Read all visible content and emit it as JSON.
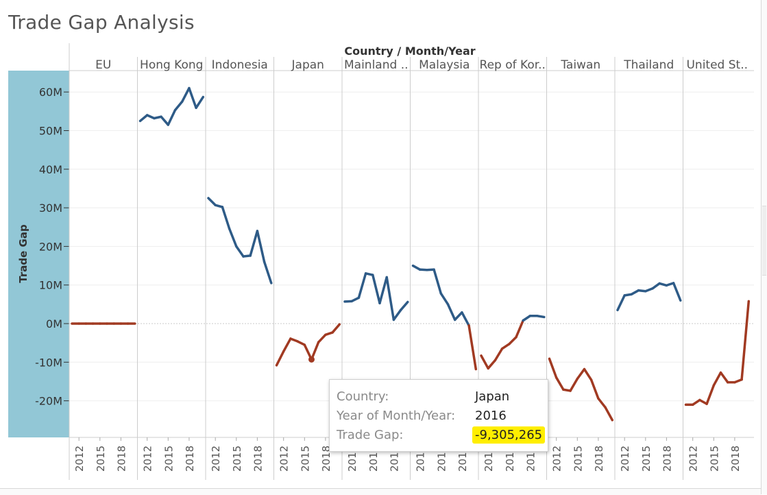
{
  "page": {
    "title": "Trade Gap Analysis"
  },
  "colors": {
    "positive": "#2e5b87",
    "negative": "#a13a22",
    "axis_band": "#92c7d6",
    "highlight": "#ffee00"
  },
  "tooltip": {
    "country_label": "Country:",
    "country_value": "Japan",
    "year_label": "Year of Month/Year:",
    "year_value": "2016",
    "gap_label": "Trade Gap:",
    "gap_value": "-9,305,265"
  },
  "chart_data": {
    "type": "line",
    "title": "",
    "column_header": "Country / Month/Year",
    "ylabel": "Trade Gap",
    "ylim": [
      -29,
      64
    ],
    "yticks": [
      60,
      50,
      40,
      30,
      20,
      10,
      0,
      -10,
      -20
    ],
    "ytick_labels": [
      "60M",
      "50M",
      "40M",
      "30M",
      "20M",
      "10M",
      "0M",
      "-10M",
      "-20M"
    ],
    "x_ticks": [
      2012,
      2015,
      2018
    ],
    "x_range": [
      2011,
      2020
    ],
    "panels": [
      {
        "label": "EU",
        "years": [
          2011,
          2012,
          2013,
          2014,
          2015,
          2016,
          2017,
          2018,
          2019,
          2020
        ],
        "values": [
          0,
          0,
          0,
          0,
          0,
          0,
          0,
          0,
          0,
          0
        ]
      },
      {
        "label": "Hong Kong",
        "years": [
          2011,
          2012,
          2013,
          2014,
          2015,
          2016,
          2017,
          2018,
          2019,
          2020
        ],
        "values": [
          52.5,
          54.0,
          53.2,
          53.6,
          51.5,
          55.3,
          57.5,
          61.0,
          55.9,
          58.7
        ]
      },
      {
        "label": "Indonesia",
        "years": [
          2011,
          2012,
          2013,
          2014,
          2015,
          2016,
          2017,
          2018,
          2019,
          2020
        ],
        "values": [
          32.5,
          30.7,
          30.2,
          24.6,
          20.0,
          17.4,
          17.6,
          24.0,
          16.0,
          10.5
        ]
      },
      {
        "label": "Japan",
        "years": [
          2011,
          2012,
          2013,
          2014,
          2015,
          2016,
          2017,
          2018,
          2019,
          2020
        ],
        "values": [
          -10.8,
          -7.2,
          -3.9,
          -4.6,
          -5.5,
          -9.3,
          -4.8,
          -2.9,
          -2.3,
          -0.2
        ]
      },
      {
        "label": "Mainland ..",
        "years": [
          2011,
          2012,
          2013,
          2014,
          2015,
          2016,
          2017,
          2018,
          2019,
          2020
        ],
        "values": [
          5.7,
          5.8,
          6.7,
          13.0,
          12.6,
          5.3,
          12.0,
          1.0,
          3.5,
          5.6
        ]
      },
      {
        "label": "Malaysia",
        "years": [
          2011,
          2012,
          2013,
          2014,
          2015,
          2016,
          2017,
          2018,
          2019,
          2020
        ],
        "values": [
          15.0,
          14.0,
          13.9,
          14.0,
          7.8,
          5.0,
          1.0,
          2.9,
          -0.5,
          -11.8
        ]
      },
      {
        "label": "Rep of Kor..",
        "years": [
          2011,
          2012,
          2013,
          2014,
          2015,
          2016,
          2017,
          2018,
          2019,
          2020
        ],
        "values": [
          -8.3,
          -11.6,
          -9.5,
          -6.5,
          -5.3,
          -3.5,
          0.8,
          2.0,
          2.0,
          1.7
        ]
      },
      {
        "label": "Taiwan",
        "years": [
          2011,
          2012,
          2013,
          2014,
          2015,
          2016,
          2017,
          2018,
          2019,
          2020
        ],
        "values": [
          -9.1,
          -14.0,
          -17.1,
          -17.4,
          -14.3,
          -11.8,
          -14.6,
          -19.4,
          -21.7,
          -25.0
        ]
      },
      {
        "label": "Thailand",
        "years": [
          2011,
          2012,
          2013,
          2014,
          2015,
          2016,
          2017,
          2018,
          2019,
          2020
        ],
        "values": [
          3.5,
          7.3,
          7.6,
          8.6,
          8.4,
          9.1,
          10.4,
          9.9,
          10.5,
          6.0
        ]
      },
      {
        "label": "United St..",
        "years": [
          2011,
          2012,
          2013,
          2014,
          2015,
          2016,
          2017,
          2018,
          2019,
          2020
        ],
        "values": [
          -21.0,
          -21.0,
          -19.8,
          -20.8,
          -16.0,
          -12.7,
          -15.2,
          -15.2,
          -14.5,
          5.8
        ]
      }
    ]
  }
}
